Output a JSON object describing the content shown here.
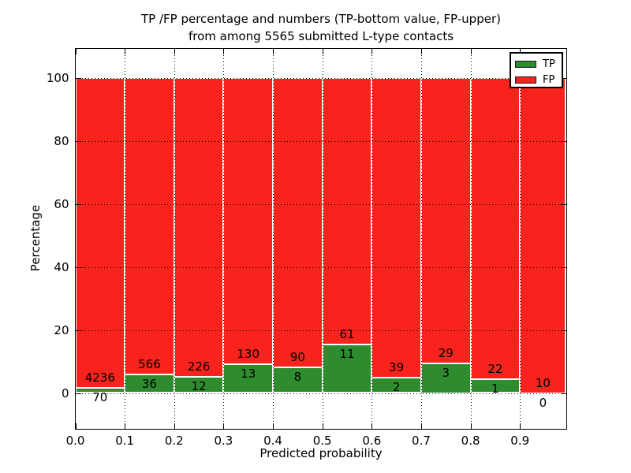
{
  "chart_data": {
    "type": "bar",
    "stacked": true,
    "normalized": "each 0.1-wide bin scaled to 100%, TP segment on bottom, FP segment on top",
    "title_line1": "TP /FP percentage and numbers (TP-bottom value, FP-upper)",
    "title_line2": "from among 5565 submitted L-type contacts",
    "xlabel": "Predicted probability",
    "ylabel": "Percentage",
    "x_tick_labels": [
      "0.0",
      "0.1",
      "0.2",
      "0.3",
      "0.4",
      "0.5",
      "0.6",
      "0.7",
      "0.8",
      "0.9"
    ],
    "y_ticks": [
      0,
      20,
      40,
      60,
      80,
      100
    ],
    "xlim": [
      0.0,
      0.993
    ],
    "ylim": [
      -11,
      109.5
    ],
    "grid": "dotted black, both axes, on top of bars",
    "bin_edges": [
      0.0,
      0.1,
      0.2,
      0.3,
      0.4,
      0.5,
      0.6,
      0.7,
      0.8,
      0.9,
      1.0
    ],
    "series": [
      {
        "name": "TP",
        "color": "#2e8c2e",
        "counts": [
          70,
          36,
          12,
          13,
          8,
          11,
          2,
          3,
          1,
          0
        ]
      },
      {
        "name": "FP",
        "color": "#f8231c",
        "counts": [
          4236,
          566,
          226,
          130,
          90,
          61,
          39,
          29,
          22,
          10
        ]
      }
    ],
    "tp_percent_by_bin": [
      1.63,
      5.98,
      5.04,
      9.09,
      8.16,
      15.28,
      4.88,
      9.38,
      4.35,
      0.0
    ],
    "annotation_rule": "FP count printed just above TP segment top, TP count printed just below TP segment top",
    "legend": {
      "position": "upper-right",
      "entries": [
        {
          "label": "TP",
          "color": "#2e8c2e"
        },
        {
          "label": "FP",
          "color": "#f8231c"
        }
      ]
    },
    "total_contacts": 5565
  },
  "colors": {
    "background": "#ffffff",
    "axes": "#000000",
    "text": "#000000",
    "tp_green": "#2e8c2e",
    "fp_red": "#f8231c"
  }
}
